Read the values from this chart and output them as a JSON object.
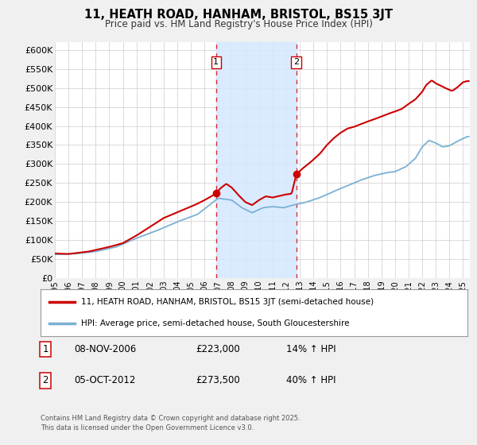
{
  "title": "11, HEATH ROAD, HANHAM, BRISTOL, BS15 3JT",
  "subtitle": "Price paid vs. HM Land Registry's House Price Index (HPI)",
  "ylim": [
    0,
    620000
  ],
  "xlim_start": 1995.0,
  "xlim_end": 2025.5,
  "yticks": [
    0,
    50000,
    100000,
    150000,
    200000,
    250000,
    300000,
    350000,
    400000,
    450000,
    500000,
    550000,
    600000
  ],
  "ytick_labels": [
    "£0",
    "£50K",
    "£100K",
    "£150K",
    "£200K",
    "£250K",
    "£300K",
    "£350K",
    "£400K",
    "£450K",
    "£500K",
    "£550K",
    "£600K"
  ],
  "xticks": [
    1995,
    1996,
    1997,
    1998,
    1999,
    2000,
    2001,
    2002,
    2003,
    2004,
    2005,
    2006,
    2007,
    2008,
    2009,
    2010,
    2011,
    2012,
    2013,
    2014,
    2015,
    2016,
    2017,
    2018,
    2019,
    2020,
    2021,
    2022,
    2023,
    2024,
    2025
  ],
  "sale1_x": 2006.85,
  "sale1_y": 223000,
  "sale2_x": 2012.75,
  "sale2_y": 273500,
  "vline1_x": 2006.85,
  "vline2_x": 2012.75,
  "shade_color": "#d4e8ff",
  "line1_color": "#cc0000",
  "line2_color": "#7ab0d4",
  "legend1_text": "11, HEATH ROAD, HANHAM, BRISTOL, BS15 3JT (semi-detached house)",
  "legend2_text": "HPI: Average price, semi-detached house, South Gloucestershire",
  "annotation1_label": "1",
  "annotation1_date": "08-NOV-2006",
  "annotation1_price": "£223,000",
  "annotation1_hpi": "14% ↑ HPI",
  "annotation2_label": "2",
  "annotation2_date": "05-OCT-2012",
  "annotation2_price": "£273,500",
  "annotation2_hpi": "40% ↑ HPI",
  "footer": "Contains HM Land Registry data © Crown copyright and database right 2025.\nThis data is licensed under the Open Government Licence v3.0.",
  "bg_color": "#f0f0f0",
  "plot_bg_color": "#ffffff"
}
